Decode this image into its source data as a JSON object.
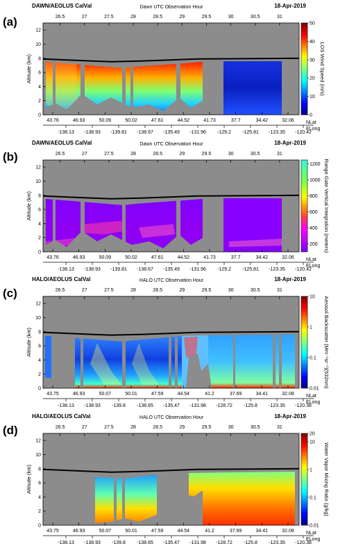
{
  "chart_data": [
    {
      "type": "heatmap",
      "panel_letter": "(a)",
      "header_left": "DAWN/AEOLUS CalVal",
      "header_right": "18-Apr-2019",
      "top_axis_title": "Dawn UTC Observation Hour",
      "top_ticks": [
        "26.5",
        "27",
        "27.5",
        "28",
        "28.5",
        "29",
        "29.5",
        "30",
        "30.5",
        "31"
      ],
      "top_tick_values": [
        26.5,
        27,
        27.5,
        28,
        28.5,
        29,
        29.5,
        30,
        30.5,
        31
      ],
      "x_range": [
        26.15,
        31.4
      ],
      "ylabel": "Altitude (km)",
      "y_ticks": [
        "0",
        "2",
        "4",
        "6",
        "8",
        "10",
        "12"
      ],
      "ylim": [
        0,
        13
      ],
      "nlat_ticks": [
        "43.76",
        "46.93",
        "50.09",
        "50.02",
        "47.61",
        "44.52",
        "41.73",
        "37.7",
        "34.42",
        "32.06"
      ],
      "elong_ticks": [
        "-138.13",
        "-138.93",
        "-139.81",
        "-138.67",
        "-135.49",
        "-131.96",
        "-129.2",
        "-125.81",
        "-123.35",
        "-120.42"
      ],
      "nlat_label": "NLat",
      "elong_label": "ELong",
      "colorbar": {
        "label": "LOS Wind Speed (m/s)",
        "ticks": [
          "0",
          "10",
          "20",
          "30",
          "40",
          "50"
        ],
        "tick_values": [
          0,
          10,
          20,
          30,
          40,
          50
        ],
        "range": [
          0,
          50
        ],
        "scale": "linear",
        "palette": "jet"
      },
      "aircraft_altitude_km": [
        {
          "hour": 26.15,
          "alt": 7.9
        },
        {
          "hour": 27.55,
          "alt": 7.5
        },
        {
          "hour": 28.15,
          "alt": 7.6
        },
        {
          "hour": 29.3,
          "alt": 7.9
        },
        {
          "hour": 31.4,
          "alt": 8.0
        }
      ]
    },
    {
      "type": "heatmap",
      "panel_letter": "(b)",
      "header_left": "DAWN/AEOLUS CalVal",
      "header_right": "18-Apr-2019",
      "top_axis_title": "Dawn UTC Observation Hour",
      "top_ticks": [
        "26.5",
        "27",
        "27.5",
        "28",
        "28.5",
        "29",
        "29.5",
        "30",
        "30.5",
        "31"
      ],
      "top_tick_values": [
        26.5,
        27,
        27.5,
        28,
        28.5,
        29,
        29.5,
        30,
        30.5,
        31
      ],
      "x_range": [
        26.15,
        31.4
      ],
      "ylabel": "Altitude (km)",
      "y_ticks": [
        "0",
        "2",
        "4",
        "6",
        "8",
        "10",
        "12"
      ],
      "ylim": [
        0,
        13
      ],
      "nlat_ticks": [
        "43.76",
        "46.93",
        "50.09",
        "50.02",
        "47.61",
        "44.52",
        "41.73",
        "37.7",
        "34.42",
        "32.06"
      ],
      "elong_ticks": [
        "-138.13",
        "-138.93",
        "-139.81",
        "-138.67",
        "-135.49",
        "-131.96",
        "-129.2",
        "-125.81",
        "-123.35",
        "-120.42"
      ],
      "nlat_label": "NLat",
      "elong_label": "ELong",
      "colorbar": {
        "label": "Range Gate Vertical Integration (meters)",
        "ticks": [
          "200",
          "400",
          "600",
          "800",
          "1000",
          "1200"
        ],
        "tick_values": [
          200,
          400,
          600,
          800,
          1000,
          1200
        ],
        "range": [
          100,
          1250
        ],
        "scale": "linear",
        "palette": "purple-to-cyan"
      },
      "aircraft_altitude_km": [
        {
          "hour": 26.15,
          "alt": 7.9
        },
        {
          "hour": 27.55,
          "alt": 7.5
        },
        {
          "hour": 28.15,
          "alt": 7.6
        },
        {
          "hour": 29.3,
          "alt": 7.9
        },
        {
          "hour": 31.4,
          "alt": 8.0
        }
      ]
    },
    {
      "type": "heatmap",
      "panel_letter": "(c)",
      "header_left": "HALO/AEOLUS CalVal",
      "header_right": "18-Apr-2019",
      "top_axis_title": "HALO UTC Observation Hour",
      "top_ticks": [
        "26.5",
        "27",
        "27.5",
        "28",
        "28.5",
        "29",
        "29.5",
        "30",
        "30.5",
        "31"
      ],
      "top_tick_values": [
        26.5,
        27,
        27.5,
        28,
        28.5,
        29,
        29.5,
        30,
        30.5,
        31
      ],
      "x_range": [
        26.15,
        31.4
      ],
      "ylabel": "Altitude (km)",
      "y_ticks": [
        "0",
        "2",
        "4",
        "6",
        "8",
        "10",
        "12"
      ],
      "ylim": [
        0,
        13
      ],
      "nlat_ticks": [
        "43.75",
        "46.93",
        "50.07",
        "50.01",
        "47.59",
        "44.54",
        "41.2",
        "37.69",
        "34.41",
        "32.08"
      ],
      "elong_ticks": [
        "-138.13",
        "-138.93",
        "-139.8",
        "-138.65",
        "-135.47",
        "-131.98",
        "-128.72",
        "-125.8",
        "-123.35",
        "-120.38"
      ],
      "nlat_label": "NLat",
      "elong_label": "ELong",
      "colorbar": {
        "label": "Aerosol Backscatter (Mm⁻¹sr⁻¹)(532nm)",
        "ticks": [
          "0.01",
          "0.1",
          "1",
          "10"
        ],
        "tick_values": [
          0.01,
          0.1,
          1,
          10
        ],
        "range": [
          0.01,
          10
        ],
        "scale": "log",
        "palette": "jet"
      },
      "aircraft_altitude_km": [
        {
          "hour": 26.15,
          "alt": 7.9
        },
        {
          "hour": 27.55,
          "alt": 7.5
        },
        {
          "hour": 28.15,
          "alt": 7.6
        },
        {
          "hour": 29.3,
          "alt": 7.9
        },
        {
          "hour": 31.4,
          "alt": 8.0
        }
      ]
    },
    {
      "type": "heatmap",
      "panel_letter": "(d)",
      "header_left": "HALO/AEOLUS CalVal",
      "header_right": "18-Apr-2019",
      "top_axis_title": "HALO UTC Observation Hour",
      "top_ticks": [
        "26.5",
        "27",
        "27.5",
        "28",
        "28.5",
        "29",
        "29.5",
        "30",
        "30.5",
        "31"
      ],
      "top_tick_values": [
        26.5,
        27,
        27.5,
        28,
        28.5,
        29,
        29.5,
        30,
        30.5,
        31
      ],
      "x_range": [
        26.15,
        31.4
      ],
      "ylabel": "Altitude (km)",
      "y_ticks": [
        "0",
        "2",
        "4",
        "6",
        "8",
        "10",
        "12"
      ],
      "ylim": [
        0,
        13
      ],
      "nlat_ticks": [
        "43.75",
        "46.93",
        "50.07",
        "50.01",
        "47.59",
        "44.54",
        "41.2",
        "37.69",
        "34.41",
        "32.08"
      ],
      "elong_ticks": [
        "-138.13",
        "-138.93",
        "-139.8",
        "-138.65",
        "-135.47",
        "-131.98",
        "-128.72",
        "-125.8",
        "-123.35",
        "-120.38"
      ],
      "nlat_label": "NLat",
      "elong_label": "ELong",
      "colorbar": {
        "label": "Water Vapor Mixing Ratio (g/kg)",
        "ticks": [
          "0.01",
          "0.1",
          "1",
          "10",
          "20"
        ],
        "tick_values": [
          0.01,
          0.1,
          1,
          10,
          20
        ],
        "range": [
          0.01,
          20
        ],
        "scale": "log",
        "palette": "jet"
      },
      "aircraft_altitude_km": [
        {
          "hour": 26.15,
          "alt": 7.9
        },
        {
          "hour": 27.55,
          "alt": 7.5
        },
        {
          "hour": 28.15,
          "alt": 7.6
        },
        {
          "hour": 29.3,
          "alt": 7.9
        },
        {
          "hour": 31.4,
          "alt": 8.0
        }
      ]
    }
  ]
}
